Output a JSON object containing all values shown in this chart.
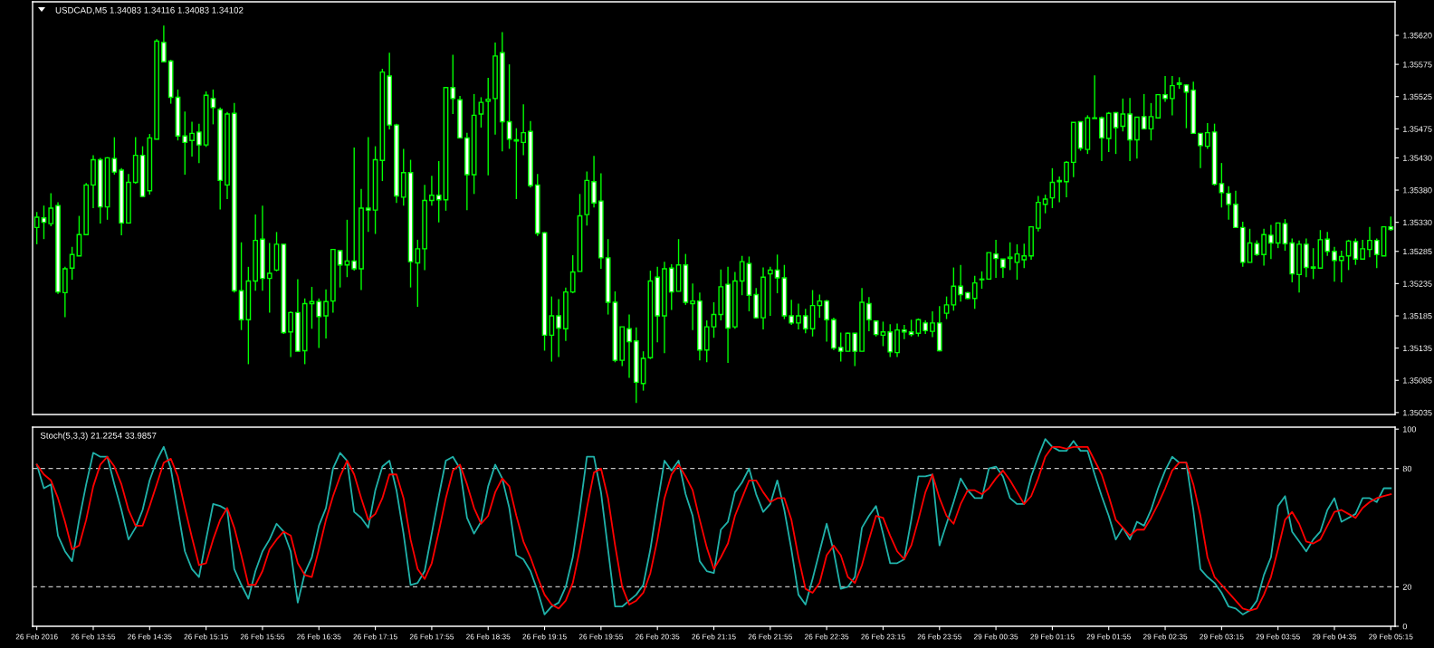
{
  "chart_data": [
    {
      "type": "candlestick",
      "title": "USDCAD,M5 1.34083 1.34116 1.34083 1.34102",
      "categories": [
        null,
        null,
        null,
        null,
        null,
        null,
        null,
        null,
        null,
        null,
        null,
        null,
        null,
        null,
        null,
        null,
        null,
        null,
        null,
        null,
        null,
        null,
        null,
        null,
        null,
        null,
        null,
        null,
        null,
        null,
        null,
        null,
        null,
        null,
        null,
        null,
        null,
        null,
        null,
        null,
        null,
        null,
        null,
        null,
        null,
        null,
        null,
        null,
        null,
        null,
        null,
        null,
        null,
        null,
        null,
        null,
        null,
        null,
        null,
        null,
        null,
        null,
        null,
        null,
        null,
        null,
        null,
        null,
        null,
        null,
        null,
        null,
        null,
        null,
        null,
        null,
        null,
        null,
        null,
        null,
        null,
        null,
        null,
        null,
        null,
        null,
        null,
        null,
        null,
        null,
        null,
        null,
        null,
        null,
        null,
        null,
        null,
        null,
        null,
        null,
        null,
        null,
        null,
        null,
        null,
        null,
        null,
        null,
        null,
        null,
        null,
        null,
        null,
        null,
        null,
        null,
        null,
        null,
        null,
        null,
        null,
        null,
        null,
        null,
        null,
        null,
        null,
        null,
        null,
        null,
        null,
        null,
        null,
        null,
        null,
        null,
        null,
        null,
        null,
        null,
        null,
        null,
        null,
        null,
        null,
        null,
        null,
        null,
        null,
        null,
        null,
        null,
        null,
        null,
        null,
        null,
        null,
        null,
        null,
        null,
        null,
        null,
        null,
        null,
        null,
        null,
        null,
        null,
        null,
        null,
        null,
        null,
        null,
        null,
        null,
        null,
        null,
        null,
        null,
        null,
        null,
        null,
        null,
        null,
        null,
        null,
        null,
        null,
        null,
        null,
        null,
        null,
        null
      ],
      "ohlc": [
        [
          1.35322,
          1.35346,
          1.35296,
          1.35338
        ],
        [
          1.35337,
          1.35356,
          1.35304,
          1.3533
        ],
        [
          1.35328,
          1.35375,
          1.35324,
          1.35352
        ],
        [
          1.35356,
          1.35361,
          1.35219,
          1.35222
        ],
        [
          1.35221,
          1.35261,
          1.35183,
          1.35258
        ],
        [
          1.35259,
          1.35292,
          1.35241,
          1.3528
        ],
        [
          1.35278,
          1.3534,
          1.35278,
          1.35311
        ],
        [
          1.35311,
          1.35391,
          1.35311,
          1.35388
        ],
        [
          1.35388,
          1.35434,
          1.35352,
          1.35427
        ],
        [
          1.35427,
          1.3543,
          1.35328,
          1.35354
        ],
        [
          1.35354,
          1.35431,
          1.35334,
          1.3543
        ],
        [
          1.35429,
          1.35462,
          1.35404,
          1.35408
        ],
        [
          1.35411,
          1.35414,
          1.3531,
          1.35329
        ],
        [
          1.35329,
          1.35405,
          1.35329,
          1.35392
        ],
        [
          1.35392,
          1.35462,
          1.3539,
          1.35434
        ],
        [
          1.35434,
          1.35448,
          1.3537,
          1.3537
        ],
        [
          1.35379,
          1.35467,
          1.35373,
          1.35461
        ],
        [
          1.35459,
          1.35614,
          1.35459,
          1.35611
        ],
        [
          1.35609,
          1.35635,
          1.35579,
          1.35579
        ],
        [
          1.3558,
          1.35582,
          1.35514,
          1.35524
        ],
        [
          1.35524,
          1.35536,
          1.35457,
          1.35464
        ],
        [
          1.35464,
          1.35502,
          1.35404,
          1.35454
        ],
        [
          1.35457,
          1.35486,
          1.35432,
          1.35468
        ],
        [
          1.3547,
          1.35483,
          1.35422,
          1.3545
        ],
        [
          1.3545,
          1.35533,
          1.35447,
          1.35527
        ],
        [
          1.35522,
          1.35536,
          1.35482,
          1.35508
        ],
        [
          1.35505,
          1.35508,
          1.3535,
          1.35395
        ],
        [
          1.35388,
          1.35501,
          1.35366,
          1.35498
        ],
        [
          1.35499,
          1.35515,
          1.35221,
          1.35224
        ],
        [
          1.35224,
          1.35299,
          1.35163,
          1.35179
        ],
        [
          1.35179,
          1.35261,
          1.3511,
          1.35239
        ],
        [
          1.35239,
          1.35342,
          1.35224,
          1.35302
        ],
        [
          1.35304,
          1.35356,
          1.35224,
          1.35243
        ],
        [
          1.35243,
          1.35298,
          1.3519,
          1.35251
        ],
        [
          1.35256,
          1.35315,
          1.35254,
          1.35296
        ],
        [
          1.35296,
          1.35296,
          1.35157,
          1.35159
        ],
        [
          1.3516,
          1.35192,
          1.35121,
          1.3519
        ],
        [
          1.3519,
          1.35242,
          1.3513,
          1.3513
        ],
        [
          1.35131,
          1.35212,
          1.3511,
          1.35204
        ],
        [
          1.35204,
          1.3523,
          1.35165,
          1.35207
        ],
        [
          1.35207,
          1.35212,
          1.35135,
          1.35184
        ],
        [
          1.35185,
          1.35226,
          1.3515,
          1.35207
        ],
        [
          1.35208,
          1.35288,
          1.3519,
          1.35288
        ],
        [
          1.35286,
          1.35286,
          1.35229,
          1.35264
        ],
        [
          1.35264,
          1.35334,
          1.35245,
          1.3527
        ],
        [
          1.3527,
          1.35446,
          1.35255,
          1.35258
        ],
        [
          1.35258,
          1.35382,
          1.35225,
          1.35352
        ],
        [
          1.35352,
          1.35462,
          1.35315,
          1.35349
        ],
        [
          1.35349,
          1.35448,
          1.35312,
          1.35427
        ],
        [
          1.35426,
          1.35568,
          1.35394,
          1.35563
        ],
        [
          1.35557,
          1.35593,
          1.35474,
          1.35481
        ],
        [
          1.35481,
          1.35483,
          1.3536,
          1.35371
        ],
        [
          1.35369,
          1.35444,
          1.35356,
          1.35407
        ],
        [
          1.35407,
          1.35427,
          1.35229,
          1.35269
        ],
        [
          1.35267,
          1.35303,
          1.35199,
          1.35289
        ],
        [
          1.35289,
          1.35388,
          1.35256,
          1.35364
        ],
        [
          1.35364,
          1.35402,
          1.35356,
          1.35372
        ],
        [
          1.35372,
          1.35425,
          1.3533,
          1.35365
        ],
        [
          1.35365,
          1.35539,
          1.35348,
          1.35539
        ],
        [
          1.35539,
          1.3559,
          1.35498,
          1.35522
        ],
        [
          1.3552,
          1.35526,
          1.35461,
          1.35461
        ],
        [
          1.35461,
          1.35469,
          1.35349,
          1.35404
        ],
        [
          1.35404,
          1.35529,
          1.35374,
          1.35496
        ],
        [
          1.35498,
          1.35524,
          1.35477,
          1.35516
        ],
        [
          1.35518,
          1.35554,
          1.35403,
          1.35521
        ],
        [
          1.35522,
          1.35609,
          1.35466,
          1.35588
        ],
        [
          1.35593,
          1.35625,
          1.3544,
          1.35486
        ],
        [
          1.35486,
          1.35575,
          1.35444,
          1.35459
        ],
        [
          1.35458,
          1.35476,
          1.35366,
          1.35456
        ],
        [
          1.35454,
          1.35513,
          1.35434,
          1.35469
        ],
        [
          1.35471,
          1.35487,
          1.35384,
          1.35387
        ],
        [
          1.35388,
          1.35405,
          1.35309,
          1.35313
        ],
        [
          1.35314,
          1.35315,
          1.35131,
          1.35155
        ],
        [
          1.35155,
          1.35215,
          1.35114,
          1.35185
        ],
        [
          1.35185,
          1.35211,
          1.35121,
          1.35166
        ],
        [
          1.35165,
          1.35229,
          1.35146,
          1.35222
        ],
        [
          1.35222,
          1.35279,
          1.3522,
          1.35253
        ],
        [
          1.35254,
          1.35374,
          1.35254,
          1.3534
        ],
        [
          1.35342,
          1.35409,
          1.35325,
          1.35395
        ],
        [
          1.35393,
          1.35433,
          1.35353,
          1.3536
        ],
        [
          1.35363,
          1.35406,
          1.35258,
          1.35275
        ],
        [
          1.35275,
          1.35304,
          1.35187,
          1.35206
        ],
        [
          1.35206,
          1.35223,
          1.35113,
          1.35116
        ],
        [
          1.35116,
          1.35168,
          1.35107,
          1.35168
        ],
        [
          1.35165,
          1.35187,
          1.35089,
          1.35145
        ],
        [
          1.35146,
          1.35167,
          1.3505,
          1.35082
        ],
        [
          1.3508,
          1.3513,
          1.35069,
          1.35119
        ],
        [
          1.3512,
          1.35255,
          1.35118,
          1.35239
        ],
        [
          1.35245,
          1.35261,
          1.35144,
          1.35185
        ],
        [
          1.35185,
          1.35269,
          1.35127,
          1.35258
        ],
        [
          1.35259,
          1.35265,
          1.35194,
          1.35222
        ],
        [
          1.35223,
          1.35304,
          1.35223,
          1.35264
        ],
        [
          1.35264,
          1.35281,
          1.35202,
          1.35206
        ],
        [
          1.35204,
          1.35235,
          1.35163,
          1.35208
        ],
        [
          1.35208,
          1.35221,
          1.35116,
          1.35132
        ],
        [
          1.35132,
          1.35178,
          1.35113,
          1.35168
        ],
        [
          1.35168,
          1.35206,
          1.35151,
          1.35187
        ],
        [
          1.35187,
          1.35257,
          1.35178,
          1.3523
        ],
        [
          1.35234,
          1.35261,
          1.35112,
          1.35166
        ],
        [
          1.35168,
          1.35253,
          1.35165,
          1.35239
        ],
        [
          1.35239,
          1.35278,
          1.35217,
          1.35269
        ],
        [
          1.35266,
          1.35277,
          1.35192,
          1.35217
        ],
        [
          1.35218,
          1.35228,
          1.35181,
          1.35182
        ],
        [
          1.35182,
          1.3526,
          1.35164,
          1.35245
        ],
        [
          1.3525,
          1.35261,
          1.35185,
          1.35256
        ],
        [
          1.35256,
          1.3528,
          1.3522,
          1.35244
        ],
        [
          1.35244,
          1.35264,
          1.3518,
          1.35185
        ],
        [
          1.35185,
          1.3521,
          1.35171,
          1.35174
        ],
        [
          1.35174,
          1.35204,
          1.35164,
          1.35185
        ],
        [
          1.35185,
          1.35196,
          1.35158,
          1.35165
        ],
        [
          1.35165,
          1.35225,
          1.35153,
          1.35201
        ],
        [
          1.35201,
          1.35218,
          1.35182,
          1.35208
        ],
        [
          1.35208,
          1.3521,
          1.35145,
          1.35179
        ],
        [
          1.35179,
          1.35182,
          1.35132,
          1.35135
        ],
        [
          1.35136,
          1.35159,
          1.35114,
          1.3513
        ],
        [
          1.3513,
          1.35159,
          1.3513,
          1.35158
        ],
        [
          1.35158,
          1.35158,
          1.35107,
          1.3513
        ],
        [
          1.3513,
          1.35228,
          1.3513,
          1.35206
        ],
        [
          1.35204,
          1.35214,
          1.35161,
          1.35179
        ],
        [
          1.35177,
          1.35177,
          1.35153,
          1.35156
        ],
        [
          1.35155,
          1.35176,
          1.35138,
          1.3516
        ],
        [
          1.3516,
          1.35172,
          1.35121,
          1.35129
        ],
        [
          1.35128,
          1.35173,
          1.35121,
          1.35163
        ],
        [
          1.35163,
          1.35171,
          1.35149,
          1.3516
        ],
        [
          1.3516,
          1.35179,
          1.35153,
          1.35156
        ],
        [
          1.35158,
          1.35181,
          1.35153,
          1.35179
        ],
        [
          1.35174,
          1.35178,
          1.35157,
          1.35162
        ],
        [
          1.35161,
          1.35192,
          1.35152,
          1.35174
        ],
        [
          1.35174,
          1.352,
          1.3513,
          1.35131
        ],
        [
          1.35189,
          1.35215,
          1.3518,
          1.35202
        ],
        [
          1.35202,
          1.3526,
          1.35193,
          1.35231
        ],
        [
          1.35231,
          1.35264,
          1.35207,
          1.35218
        ],
        [
          1.35221,
          1.35222,
          1.35211,
          1.35212
        ],
        [
          1.35212,
          1.35247,
          1.35196,
          1.35236
        ],
        [
          1.35241,
          1.35254,
          1.35227,
          1.35242
        ],
        [
          1.35242,
          1.35283,
          1.35241,
          1.35283
        ],
        [
          1.35281,
          1.35303,
          1.35244,
          1.35274
        ],
        [
          1.35273,
          1.35273,
          1.35244,
          1.3526
        ],
        [
          1.35274,
          1.35299,
          1.35256,
          1.35276
        ],
        [
          1.35268,
          1.35296,
          1.35241,
          1.35281
        ],
        [
          1.35272,
          1.35297,
          1.35259,
          1.35278
        ],
        [
          1.35278,
          1.35323,
          1.35272,
          1.35323
        ],
        [
          1.35321,
          1.35371,
          1.35316,
          1.35361
        ],
        [
          1.35358,
          1.35373,
          1.35344,
          1.35366
        ],
        [
          1.35368,
          1.35414,
          1.35352,
          1.35392
        ],
        [
          1.35393,
          1.35401,
          1.35361,
          1.35395
        ],
        [
          1.35393,
          1.35425,
          1.35369,
          1.35423
        ],
        [
          1.35423,
          1.35485,
          1.354,
          1.35485
        ],
        [
          1.35486,
          1.35486,
          1.35441,
          1.35445
        ],
        [
          1.35443,
          1.35496,
          1.35436,
          1.35492
        ],
        [
          1.35491,
          1.35558,
          1.35491,
          1.35492
        ],
        [
          1.35492,
          1.35494,
          1.35425,
          1.35461
        ],
        [
          1.3546,
          1.35501,
          1.35439,
          1.35499
        ],
        [
          1.355,
          1.35501,
          1.35436,
          1.35477
        ],
        [
          1.35479,
          1.35522,
          1.35471,
          1.35498
        ],
        [
          1.35498,
          1.35523,
          1.35425,
          1.35458
        ],
        [
          1.35458,
          1.35493,
          1.35429,
          1.35493
        ],
        [
          1.35494,
          1.35529,
          1.35474,
          1.35475
        ],
        [
          1.35475,
          1.35515,
          1.35457,
          1.35494
        ],
        [
          1.35492,
          1.35528,
          1.35492,
          1.35528
        ],
        [
          1.35528,
          1.35557,
          1.35517,
          1.35522
        ],
        [
          1.35522,
          1.35557,
          1.35496,
          1.35542
        ],
        [
          1.35544,
          1.35555,
          1.35537,
          1.35546
        ],
        [
          1.35543,
          1.35544,
          1.35476,
          1.35532
        ],
        [
          1.35535,
          1.35548,
          1.35468,
          1.35468
        ],
        [
          1.35468,
          1.35468,
          1.35414,
          1.35449
        ],
        [
          1.35448,
          1.35484,
          1.35444,
          1.35469
        ],
        [
          1.3547,
          1.35483,
          1.35387,
          1.35389
        ],
        [
          1.3539,
          1.35422,
          1.35353,
          1.35376
        ],
        [
          1.35375,
          1.35386,
          1.35334,
          1.35358
        ],
        [
          1.35358,
          1.35379,
          1.35321,
          1.35322
        ],
        [
          1.35322,
          1.35331,
          1.35261,
          1.35268
        ],
        [
          1.35268,
          1.3532,
          1.35268,
          1.35298
        ],
        [
          1.35297,
          1.35302,
          1.35278,
          1.3528
        ],
        [
          1.3528,
          1.3532,
          1.35263,
          1.35311
        ],
        [
          1.3531,
          1.35326,
          1.35273,
          1.35298
        ],
        [
          1.35298,
          1.35329,
          1.3529,
          1.35329
        ],
        [
          1.35328,
          1.35335,
          1.35286,
          1.35297
        ],
        [
          1.35298,
          1.35305,
          1.35237,
          1.3525
        ],
        [
          1.35249,
          1.35302,
          1.35221,
          1.35296
        ],
        [
          1.35296,
          1.35305,
          1.35245,
          1.3526
        ],
        [
          1.35259,
          1.3529,
          1.35242,
          1.35261
        ],
        [
          1.35259,
          1.35318,
          1.35259,
          1.35303
        ],
        [
          1.35304,
          1.35315,
          1.35278,
          1.35285
        ],
        [
          1.35285,
          1.35292,
          1.35238,
          1.35271
        ],
        [
          1.35271,
          1.35286,
          1.35237,
          1.35277
        ],
        [
          1.35278,
          1.35303,
          1.35256,
          1.35301
        ],
        [
          1.353,
          1.35305,
          1.35264,
          1.35273
        ],
        [
          1.35273,
          1.35303,
          1.35273,
          1.35289
        ],
        [
          1.35288,
          1.35323,
          1.35276,
          1.35302
        ],
        [
          1.35302,
          1.35305,
          1.35259,
          1.3528
        ],
        [
          1.35278,
          1.35323,
          1.35278,
          1.35323
        ],
        [
          1.35323,
          1.35339,
          1.35317,
          1.35319
        ]
      ],
      "ylim": [
        1.35032,
        1.35672
      ],
      "yticks": [
        1.35035,
        1.35085,
        1.35135,
        1.35185,
        1.35235,
        1.35285,
        {
          "value": 1.3533,
          "label": "1.35330"
        },
        {
          "value": 1.3538,
          "label": "1.35380"
        },
        {
          "value": 1.3543,
          "label": "1.35430"
        },
        1.35475,
        1.35525,
        1.35575,
        {
          "value": 1.3562,
          "label": "1.35620"
        }
      ]
    },
    {
      "type": "line",
      "title": "Stoch(5,3,3) 21.2254 33.9857",
      "categories": [
        "26 Feb 2016",
        null,
        null,
        null,
        null,
        null,
        null,
        null,
        "26 Feb 13:55",
        null,
        null,
        null,
        null,
        null,
        null,
        null,
        "26 Feb 14:35",
        null,
        null,
        null,
        null,
        null,
        null,
        null,
        "26 Feb 15:15",
        null,
        null,
        null,
        null,
        null,
        null,
        null,
        "26 Feb 15:55",
        null,
        null,
        null,
        null,
        null,
        null,
        null,
        "26 Feb 16:35",
        null,
        null,
        null,
        null,
        null,
        null,
        null,
        "26 Feb 17:15",
        null,
        null,
        null,
        null,
        null,
        null,
        null,
        "26 Feb 17:55",
        null,
        null,
        null,
        null,
        null,
        null,
        null,
        "26 Feb 18:35",
        null,
        null,
        null,
        null,
        null,
        null,
        null,
        "26 Feb 19:15",
        null,
        null,
        null,
        null,
        null,
        null,
        null,
        "26 Feb 19:55",
        null,
        null,
        null,
        null,
        null,
        null,
        null,
        "26 Feb 20:35",
        null,
        null,
        null,
        null,
        null,
        null,
        null,
        "26 Feb 21:15",
        null,
        null,
        null,
        null,
        null,
        null,
        null,
        "26 Feb 21:55",
        null,
        null,
        null,
        null,
        null,
        null,
        null,
        "26 Feb 22:35",
        null,
        null,
        null,
        null,
        null,
        null,
        null,
        "26 Feb 23:15",
        null,
        null,
        null,
        null,
        null,
        null,
        null,
        "26 Feb 23:55",
        null,
        null,
        null,
        null,
        null,
        null,
        null,
        "29 Feb 00:35",
        null,
        null,
        null,
        null,
        null,
        null,
        null,
        "29 Feb 01:15",
        null,
        null,
        null,
        null,
        null,
        null,
        null,
        "29 Feb 01:55",
        null,
        null,
        null,
        null,
        null,
        null,
        null,
        "29 Feb 02:35",
        null,
        null,
        null,
        null,
        null,
        null,
        null,
        "29 Feb 03:15",
        null,
        null,
        null,
        null,
        null,
        null,
        null,
        "29 Feb 03:55",
        null,
        null,
        null,
        null,
        null,
        null,
        null,
        "29 Feb 04:35",
        null,
        null,
        null,
        null,
        null,
        null,
        null,
        "29 Feb 05:15"
      ],
      "series": [
        {
          "color": "#20b2aa",
          "values": [
            82,
            70,
            72,
            46,
            38,
            33,
            54,
            72,
            88,
            86,
            86,
            72,
            59,
            44,
            50,
            59,
            74,
            84,
            91,
            80,
            59,
            38,
            29,
            25,
            44,
            62,
            61,
            59,
            29,
            21,
            14,
            28,
            38,
            44,
            52,
            48,
            38,
            12,
            27,
            35,
            51,
            60,
            80,
            88,
            84,
            58,
            55,
            50,
            69,
            81,
            84,
            69,
            47,
            21,
            22,
            28,
            47,
            66,
            84,
            86,
            80,
            55,
            47,
            53,
            71,
            82,
            75,
            60,
            36,
            34,
            28,
            18,
            6,
            10,
            12,
            20,
            35,
            59,
            86,
            86,
            68,
            39,
            10,
            10,
            13,
            16,
            21,
            39,
            62,
            84,
            79,
            84,
            67,
            56,
            33,
            28,
            27,
            49,
            53,
            68,
            73,
            80,
            67,
            58,
            62,
            74,
            59,
            39,
            16,
            11,
            24,
            38,
            52,
            38,
            19,
            20,
            25,
            50,
            56,
            61,
            47,
            32,
            32,
            34,
            54,
            76,
            76,
            77,
            41,
            52,
            63,
            75,
            69,
            65,
            65,
            80,
            81,
            76,
            65,
            62,
            62,
            76,
            86,
            95,
            91,
            89,
            89,
            94,
            89,
            89,
            77,
            66,
            56,
            44,
            50,
            44,
            53,
            51,
            59,
            70,
            79,
            86,
            83,
            83,
            59,
            29,
            25,
            22,
            17,
            10,
            9,
            6,
            8,
            13,
            26,
            35,
            61,
            66,
            48,
            43,
            38,
            44,
            48,
            59,
            65,
            53,
            55,
            57,
            65,
            65,
            63,
            70,
            70
          ]
        },
        {
          "color": "#ff0000",
          "values": [
            82,
            77,
            74,
            65,
            53,
            39,
            41,
            54,
            71,
            82,
            86,
            81,
            72,
            59,
            51,
            51,
            61,
            72,
            83,
            85,
            76,
            60,
            45,
            31,
            32,
            44,
            54,
            60,
            50,
            36,
            21,
            21,
            28,
            39,
            44,
            48,
            46,
            32,
            26,
            25,
            39,
            54,
            66,
            76,
            84,
            77,
            65,
            54,
            57,
            65,
            77,
            77,
            65,
            44,
            29,
            24,
            32,
            48,
            65,
            79,
            82,
            72,
            60,
            52,
            56,
            68,
            75,
            71,
            56,
            43,
            35,
            25,
            16,
            11,
            9,
            13,
            22,
            39,
            60,
            78,
            80,
            65,
            41,
            20,
            11,
            13,
            17,
            27,
            44,
            65,
            77,
            82,
            76,
            69,
            54,
            40,
            29,
            35,
            42,
            56,
            65,
            74,
            74,
            68,
            63,
            65,
            65,
            54,
            35,
            19,
            17,
            22,
            36,
            41,
            36,
            25,
            22,
            31,
            44,
            56,
            55,
            46,
            38,
            34,
            41,
            54,
            68,
            77,
            65,
            56,
            52,
            62,
            69,
            69,
            67,
            70,
            75,
            79,
            74,
            68,
            62,
            66,
            75,
            86,
            91,
            91,
            90,
            91,
            91,
            91,
            84,
            77,
            66,
            54,
            50,
            46,
            49,
            49,
            55,
            62,
            70,
            79,
            83,
            83,
            72,
            56,
            35,
            25,
            21,
            17,
            13,
            9,
            8,
            9,
            16,
            25,
            39,
            54,
            58,
            52,
            43,
            42,
            44,
            51,
            58,
            59,
            57,
            55,
            60,
            63,
            65,
            66,
            67
          ]
        }
      ],
      "ylim": [
        0,
        101
      ],
      "yticks": [
        0,
        20,
        80,
        100
      ],
      "ref_lines": [
        {
          "axis": "y",
          "value": 80,
          "color": "#c0c0c0",
          "line_style": "dashed"
        },
        {
          "axis": "y",
          "value": 20,
          "color": "#c0c0c0",
          "line_style": "dashed"
        }
      ]
    }
  ]
}
